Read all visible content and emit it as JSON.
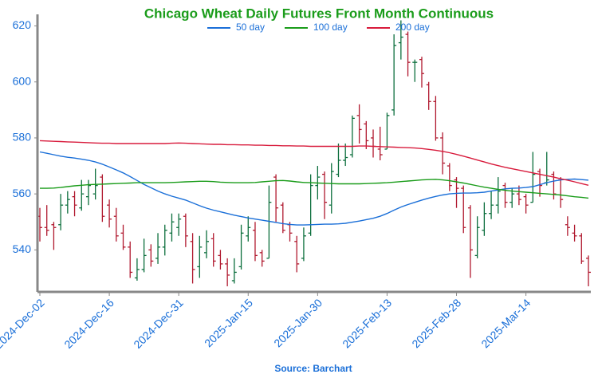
{
  "chart_data": {
    "type": "ohlc",
    "title": "Chicago Wheat Daily Futures Front Month Continuous",
    "source": "Source: Barchart",
    "categories": [
      "2024-Dec-02",
      null,
      null,
      null,
      null,
      null,
      null,
      null,
      null,
      null,
      "2024-Dec-16",
      null,
      null,
      null,
      null,
      null,
      null,
      null,
      null,
      null,
      "2024-Dec-31",
      null,
      null,
      null,
      null,
      null,
      null,
      null,
      null,
      null,
      "2025-Jan-15",
      null,
      null,
      null,
      null,
      null,
      null,
      null,
      null,
      null,
      "2025-Jan-30",
      null,
      null,
      null,
      null,
      null,
      null,
      null,
      null,
      null,
      "2025-Feb-13",
      null,
      null,
      null,
      null,
      null,
      null,
      null,
      null,
      null,
      "2025-Feb-28",
      null,
      null,
      null,
      null,
      null,
      null,
      null,
      null,
      null,
      "2025-Mar-14",
      null,
      null,
      null,
      null,
      null,
      null,
      null,
      null,
      null
    ],
    "open": [
      552,
      548,
      549,
      549,
      556,
      559,
      555,
      559,
      560,
      566,
      556,
      552,
      546,
      541,
      530,
      533,
      540,
      537,
      541,
      546,
      548,
      552,
      543,
      534,
      539,
      544,
      538,
      535,
      529,
      534,
      545,
      547,
      539,
      537,
      566,
      556,
      549,
      543,
      537,
      546,
      563,
      567,
      556,
      567,
      572,
      574,
      588,
      585,
      580,
      576,
      576,
      590,
      614,
      617,
      607,
      608,
      599,
      593,
      580,
      570,
      565,
      562,
      555,
      538,
      547,
      553,
      556,
      563,
      557,
      560,
      559,
      557,
      568,
      564,
      567,
      565,
      549,
      546,
      545,
      537
    ],
    "high": [
      555,
      556,
      550,
      560,
      561,
      561,
      565,
      565,
      569,
      567,
      558,
      555,
      549,
      543,
      537,
      544,
      542,
      546,
      549,
      553,
      553,
      553,
      546,
      545,
      547,
      546,
      540,
      537,
      537,
      549,
      552,
      550,
      540,
      563,
      567,
      557,
      550,
      545,
      548,
      567,
      570,
      568,
      571,
      578,
      578,
      588,
      592,
      586,
      583,
      584,
      589,
      617,
      622,
      618,
      608,
      609,
      600,
      595,
      582,
      571,
      566,
      563,
      556,
      552,
      557,
      561,
      566,
      564,
      562,
      563,
      560,
      575,
      569,
      575,
      568,
      566,
      552,
      549,
      546,
      538
    ],
    "low": [
      543,
      545,
      540,
      547,
      553,
      552,
      554,
      556,
      558,
      550,
      548,
      543,
      540,
      530,
      529,
      532,
      534,
      535,
      538,
      543,
      545,
      541,
      528,
      530,
      537,
      534,
      533,
      527,
      528,
      533,
      543,
      536,
      534,
      537,
      550,
      546,
      543,
      532,
      536,
      545,
      558,
      551,
      553,
      566,
      570,
      573,
      578,
      576,
      573,
      572,
      576,
      588,
      608,
      602,
      600,
      598,
      590,
      579,
      567,
      561,
      555,
      546,
      530,
      537,
      545,
      551,
      553,
      555,
      555,
      556,
      553,
      557,
      559,
      563,
      558,
      555,
      545,
      543,
      535,
      527
    ],
    "close": [
      548,
      547,
      548,
      556,
      558,
      556,
      560,
      563,
      563,
      552,
      551,
      545,
      541,
      532,
      533,
      538,
      536,
      541,
      547,
      550,
      551,
      545,
      533,
      541,
      543,
      536,
      535,
      531,
      532,
      546,
      548,
      538,
      536,
      557,
      555,
      547,
      546,
      535,
      545,
      563,
      566,
      557,
      568,
      572,
      573,
      587,
      583,
      579,
      577,
      574,
      588,
      613,
      616,
      607,
      607,
      603,
      593,
      580,
      571,
      563,
      562,
      548,
      540,
      548,
      553,
      556,
      561,
      557,
      560,
      558,
      556,
      567,
      563,
      565,
      560,
      558,
      548,
      545,
      536,
      532
    ],
    "up_color": "#0b6e3c",
    "down_color": "#b0182e",
    "series": [
      {
        "name": "50 day",
        "color": "#1a6fd8",
        "values": [
          575,
          574.5,
          574,
          573.5,
          573.1,
          572.8,
          572.4,
          572,
          571.4,
          570.6,
          569.6,
          568.6,
          567.5,
          566.2,
          564.8,
          563.4,
          562.2,
          561,
          560,
          559.2,
          558.5,
          557.8,
          556.8,
          555.8,
          554.9,
          554.2,
          553.6,
          553,
          552.4,
          551.9,
          551.4,
          551,
          550.6,
          550.2,
          549.8,
          549.4,
          549.1,
          548.9,
          548.9,
          549,
          549.1,
          549.2,
          549.2,
          549.3,
          549.5,
          549.9,
          550.3,
          550.8,
          551.3,
          552,
          553,
          554.2,
          555.3,
          556.2,
          557,
          557.8,
          558.5,
          559.1,
          559.6,
          560,
          560.2,
          560.3,
          560.3,
          560.4,
          560.6,
          561,
          561.4,
          561.8,
          562,
          562.1,
          562.3,
          562.6,
          563.3,
          564,
          564.6,
          565,
          565.2,
          565.3,
          565.1,
          564.9
        ]
      },
      {
        "name": "100 day",
        "color": "#1a9c1a",
        "values": [
          562,
          562,
          562.1,
          562.3,
          562.6,
          562.9,
          563.1,
          563.3,
          563.4,
          563.5,
          563.6,
          563.7,
          563.8,
          563.9,
          564,
          564,
          564,
          564,
          564,
          564.1,
          564.2,
          564.3,
          564.4,
          564.5,
          564.5,
          564.4,
          564.2,
          564.1,
          564,
          564,
          564,
          564.1,
          564.3,
          564.5,
          564.7,
          564.8,
          564.6,
          564.3,
          564.1,
          564,
          563.9,
          563.8,
          563.7,
          563.6,
          563.6,
          563.6,
          563.6,
          563.7,
          563.8,
          563.9,
          564,
          564.2,
          564.4,
          564.6,
          564.8,
          565,
          565.1,
          565.2,
          565,
          564.7,
          564.3,
          563.9,
          563.4,
          562.9,
          562.4,
          562,
          561.6,
          561.3,
          561,
          560.8,
          560.6,
          560.4,
          560.2,
          560,
          559.8,
          559.6,
          559.3,
          559,
          558.8,
          558.5
        ]
      },
      {
        "name": "200 day",
        "color": "#d81b3c",
        "values": [
          579,
          578.9,
          578.8,
          578.7,
          578.6,
          578.5,
          578.4,
          578.3,
          578.2,
          578.1,
          578.1,
          578,
          578,
          578,
          578,
          578,
          578,
          578,
          578,
          578.1,
          578.2,
          578.1,
          578,
          577.9,
          577.8,
          577.7,
          577.7,
          577.6,
          577.6,
          577.5,
          577.5,
          577.4,
          577.4,
          577.3,
          577.3,
          577.2,
          577.2,
          577.1,
          577.1,
          577,
          577,
          577,
          577,
          577,
          577,
          577,
          577.1,
          577.1,
          577,
          576.9,
          576.8,
          576.7,
          576.6,
          576.5,
          576.4,
          576.2,
          575.9,
          575.6,
          575.2,
          574.7,
          574.1,
          573.5,
          572.8,
          572.1,
          571.4,
          570.7,
          570.1,
          569.5,
          569,
          568.5,
          568,
          567.5,
          567,
          566.5,
          566,
          565.4,
          564.9,
          564.3,
          563.7,
          563.1
        ]
      }
    ],
    "ylim": [
      525,
      623
    ],
    "yticks": [
      540,
      560,
      580,
      600,
      620
    ],
    "grid": false,
    "legend": "top"
  }
}
